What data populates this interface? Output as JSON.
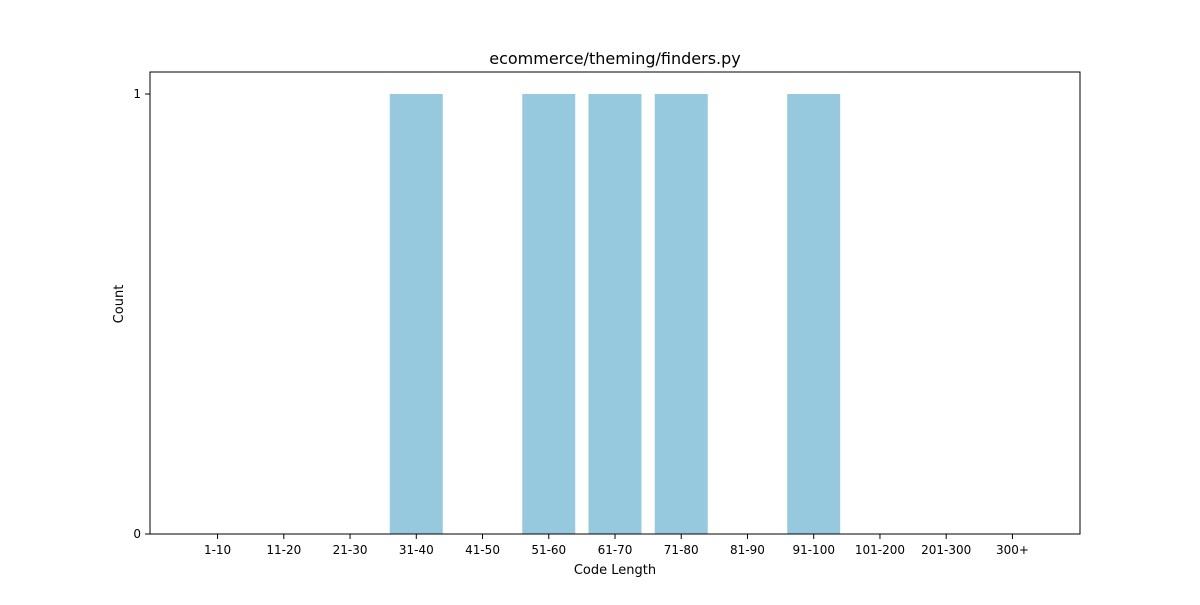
{
  "chart_data": {
    "type": "bar",
    "title": "ecommerce/theming/finders.py",
    "xlabel": "Code Length",
    "ylabel": "Count",
    "categories": [
      "1-10",
      "11-20",
      "21-30",
      "31-40",
      "41-50",
      "51-60",
      "61-70",
      "71-80",
      "81-90",
      "91-100",
      "101-200",
      "201-300",
      "300+"
    ],
    "values": [
      0,
      0,
      0,
      1,
      0,
      1,
      1,
      1,
      0,
      1,
      0,
      0,
      0
    ],
    "ylim": [
      0,
      1.05
    ],
    "yticks": [
      0,
      1
    ],
    "bar_color": "#96c9de",
    "grid": false,
    "legend": "none"
  }
}
